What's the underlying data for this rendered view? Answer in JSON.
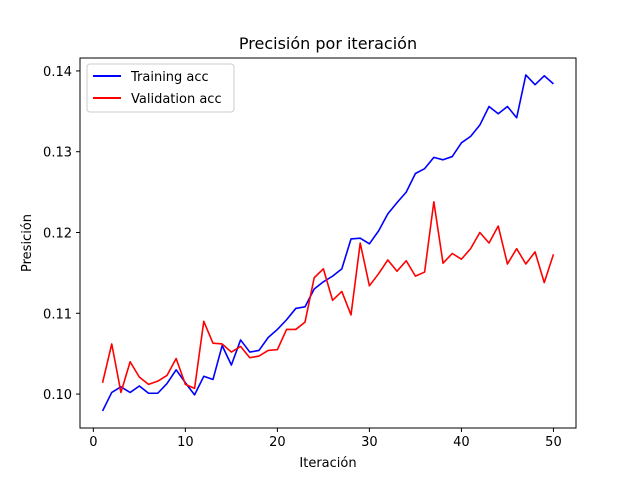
{
  "chart_data": {
    "type": "line",
    "title": "Precisión por iteración",
    "xlabel": "Iteración",
    "ylabel": "Presición",
    "xlim": [
      -1.45,
      52.45
    ],
    "ylim": [
      0.0958,
      0.1416
    ],
    "xticks": [
      0,
      10,
      20,
      30,
      40,
      50
    ],
    "yticks": [
      0.1,
      0.11,
      0.12,
      0.13,
      0.14
    ],
    "ytick_labels": [
      "0.10",
      "0.11",
      "0.12",
      "0.13",
      "0.14"
    ],
    "grid": false,
    "legend_position": "top-left",
    "x": [
      1,
      2,
      3,
      4,
      5,
      6,
      7,
      8,
      9,
      10,
      11,
      12,
      13,
      14,
      15,
      16,
      17,
      18,
      19,
      20,
      21,
      22,
      23,
      24,
      25,
      26,
      27,
      28,
      29,
      30,
      31,
      32,
      33,
      34,
      35,
      36,
      37,
      38,
      39,
      40,
      41,
      42,
      43,
      44,
      45,
      46,
      47,
      48,
      49,
      50
    ],
    "series": [
      {
        "name": "Training acc",
        "color": "#0000ff",
        "values": [
          0.0979,
          0.1002,
          0.1009,
          0.1002,
          0.101,
          0.1001,
          0.1001,
          0.1013,
          0.103,
          0.1014,
          0.0999,
          0.1022,
          0.1018,
          0.106,
          0.1036,
          0.1067,
          0.1052,
          0.1054,
          0.107,
          0.108,
          0.1092,
          0.1106,
          0.1108,
          0.113,
          0.1139,
          0.1146,
          0.1155,
          0.1192,
          0.1193,
          0.1186,
          0.1202,
          0.1223,
          0.1237,
          0.125,
          0.1273,
          0.1279,
          0.1293,
          0.129,
          0.1294,
          0.1311,
          0.1319,
          0.1333,
          0.1356,
          0.1347,
          0.1356,
          0.1342,
          0.1395,
          0.1383,
          0.1394,
          0.1384
        ]
      },
      {
        "name": "Validation acc",
        "color": "#ff0000",
        "values": [
          0.1014,
          0.1062,
          0.1002,
          0.104,
          0.1021,
          0.1012,
          0.1016,
          0.1023,
          0.1044,
          0.1012,
          0.1007,
          0.109,
          0.1063,
          0.1062,
          0.1052,
          0.1059,
          0.1045,
          0.1047,
          0.1054,
          0.1055,
          0.108,
          0.108,
          0.1089,
          0.1144,
          0.1155,
          0.1116,
          0.1127,
          0.1098,
          0.1187,
          0.1134,
          0.1149,
          0.1166,
          0.1152,
          0.1165,
          0.1146,
          0.1151,
          0.1238,
          0.1162,
          0.1174,
          0.1167,
          0.118,
          0.12,
          0.1187,
          0.1208,
          0.1161,
          0.118,
          0.1161,
          0.1176,
          0.1138,
          0.1173
        ]
      }
    ]
  }
}
